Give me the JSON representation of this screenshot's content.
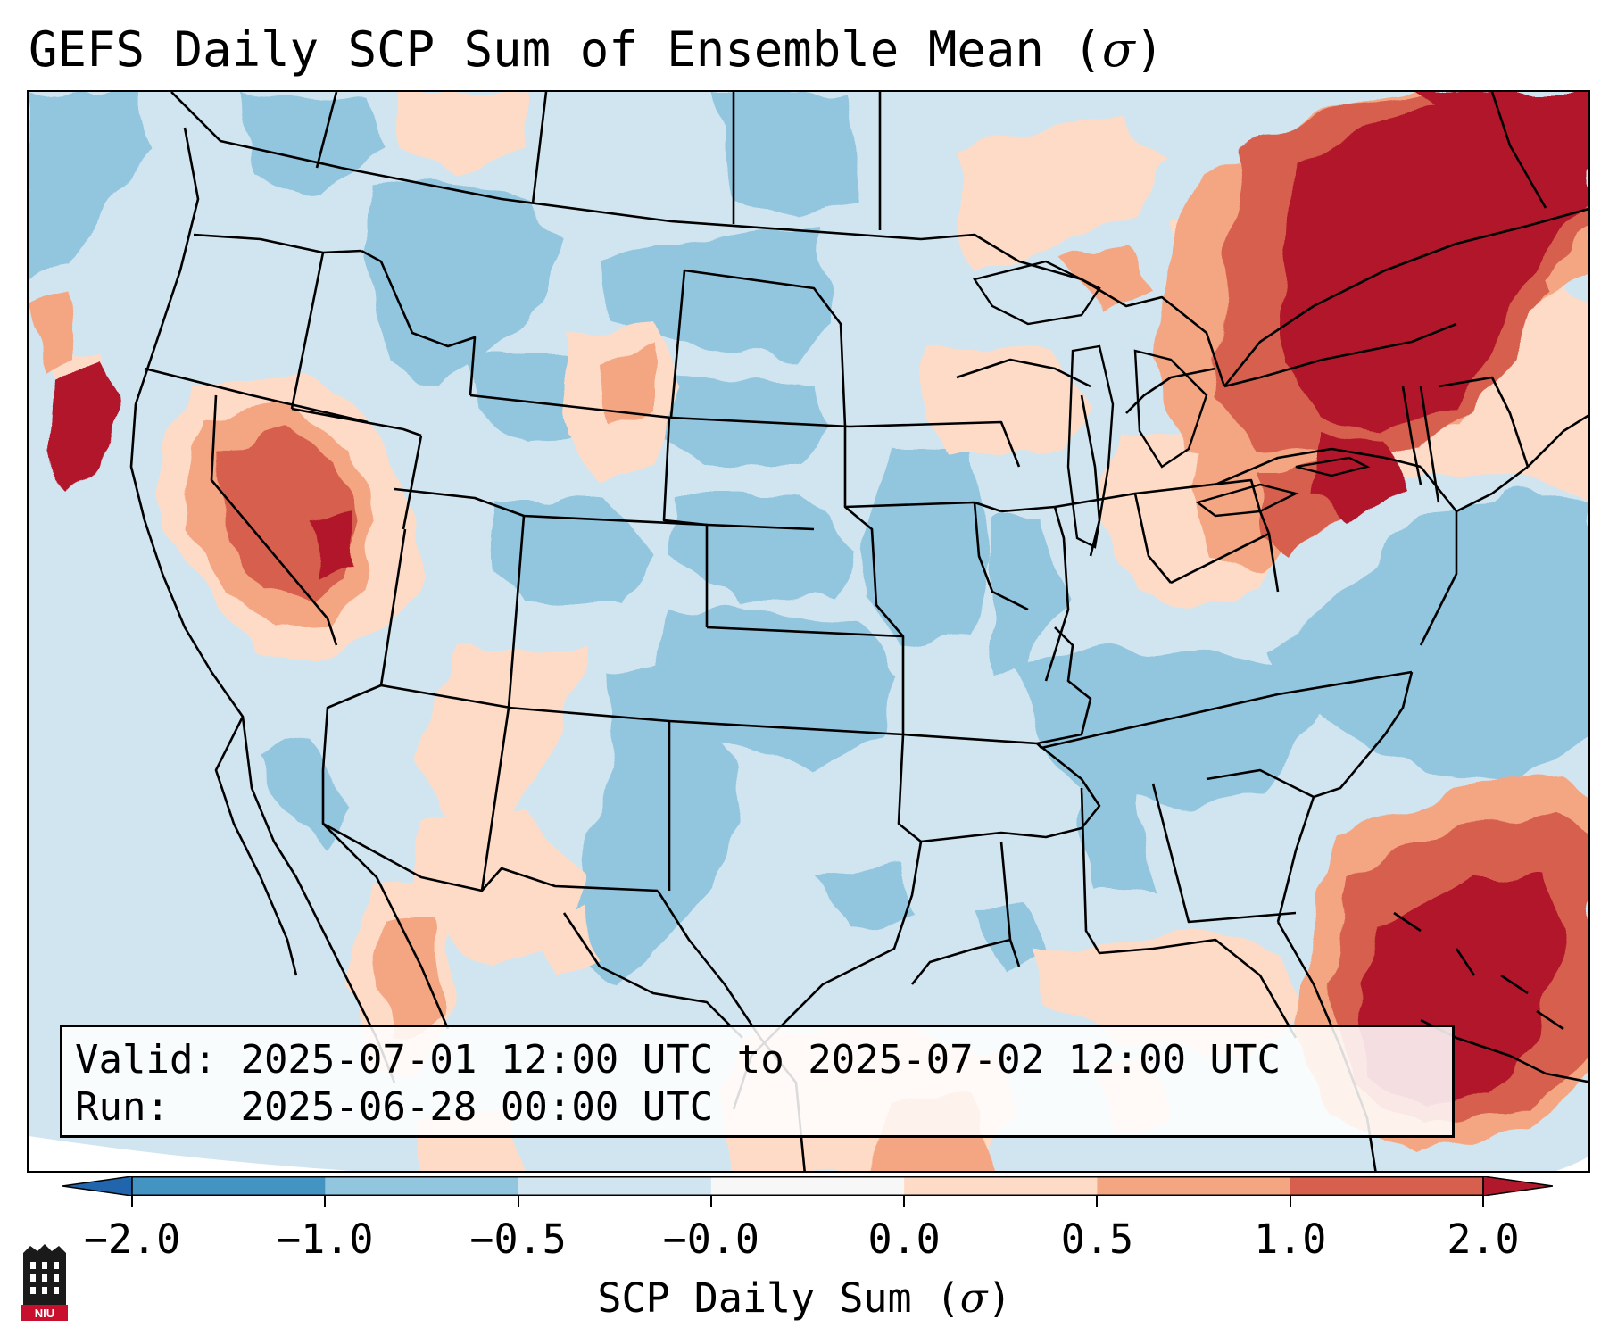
{
  "title": {
    "prefix": "GEFS Daily SCP Sum of Ensemble Mean (",
    "symbol": "σ",
    "suffix": ")"
  },
  "info_box": {
    "valid_label": "Valid:",
    "valid_value": "2025-07-01 12:00 UTC to 2025-07-02 12:00 UTC",
    "run_label": "Run:",
    "run_value": "2025-06-28 00:00 UTC"
  },
  "colorbar": {
    "label_prefix": "SCP Daily Sum (",
    "label_symbol": "σ",
    "label_suffix": ")",
    "tick_labels": [
      "−2.0",
      "−1.0",
      "−0.5",
      "−0.0",
      "0.0",
      "0.5",
      "1.0",
      "2.0"
    ],
    "bins": [
      {
        "range": "< -2.0",
        "color": "#2166ac"
      },
      {
        "range": "-2.0 to -1.0",
        "color": "#4393c3"
      },
      {
        "range": "-1.0 to -0.5",
        "color": "#92c5de"
      },
      {
        "range": "-0.5 to -0.0",
        "color": "#d1e5f0"
      },
      {
        "range": "-0.0 to 0.0",
        "color": "#f7f7f7"
      },
      {
        "range": "0.0 to 0.5",
        "color": "#fddbc7"
      },
      {
        "range": "0.5 to 1.0",
        "color": "#f4a582"
      },
      {
        "range": "1.0 to 2.0",
        "color": "#d6604d"
      },
      {
        "range": "> 2.0",
        "color": "#b2182b"
      }
    ]
  },
  "map_regions": [
    {
      "name": "northeast-us",
      "category": "1.0 to 2.0+"
    },
    {
      "name": "great-basin-nevada",
      "category": "0.5 to 2.0+"
    },
    {
      "name": "northern-california-coast",
      "category": "> 2.0"
    },
    {
      "name": "bahamas-cuba",
      "category": "> 2.0"
    },
    {
      "name": "southern-plains-texas",
      "category": "-1.0 to -0.5"
    },
    {
      "name": "western-atlantic",
      "category": "-1.0 to -0.5"
    },
    {
      "name": "great-lakes-wisconsin",
      "category": "0.0 to 0.5"
    }
  ],
  "logo": {
    "text": "NIU"
  }
}
